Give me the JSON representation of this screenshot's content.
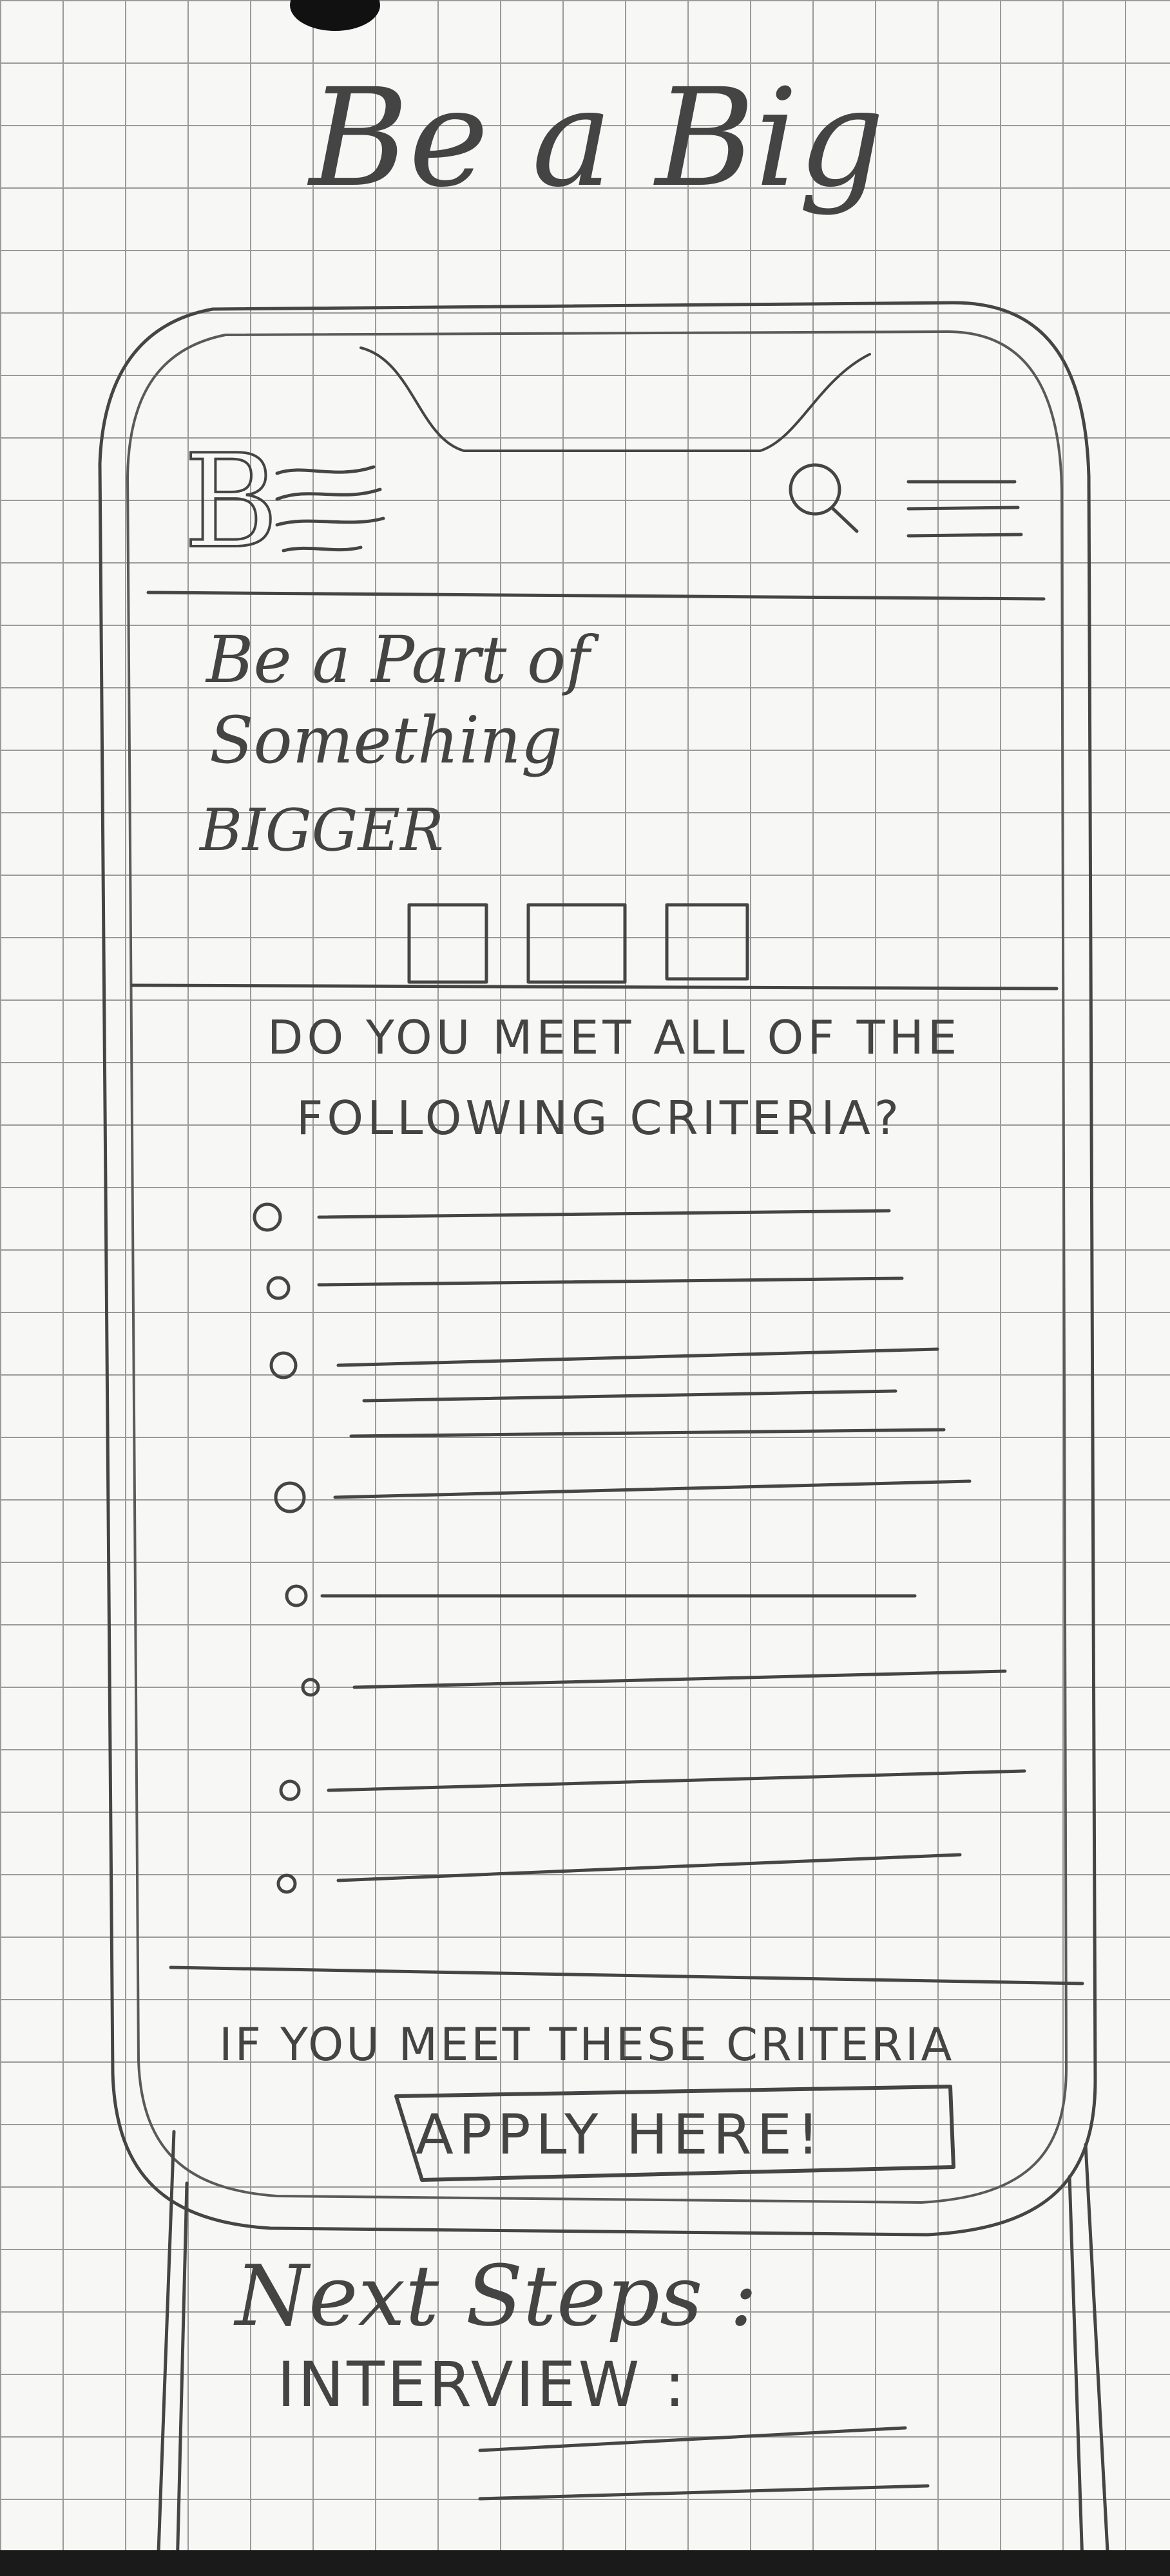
{
  "sheet_title": "Be a Big",
  "logo_letter": "B",
  "hero": {
    "line1": "Be a Part of",
    "line2": "Something",
    "line3": "BIGGER"
  },
  "criteria": {
    "heading_line1": "DO YOU MEET ALL OF THE",
    "heading_line2": "FOLLOWING CRITERIA?"
  },
  "cta": {
    "prompt": "IF YOU MEET THESE CRITERIA",
    "button_label": "APPLY HERE!"
  },
  "next_steps": {
    "label": "Next Steps :",
    "interview_label": "INTERVIEW :"
  },
  "icons": [
    "logo-b-icon",
    "search-icon",
    "hamburger-menu-icon"
  ],
  "colors": {
    "paper": "#f7f7f5",
    "grid": "#9a9a9a",
    "pencil": "#444444"
  }
}
